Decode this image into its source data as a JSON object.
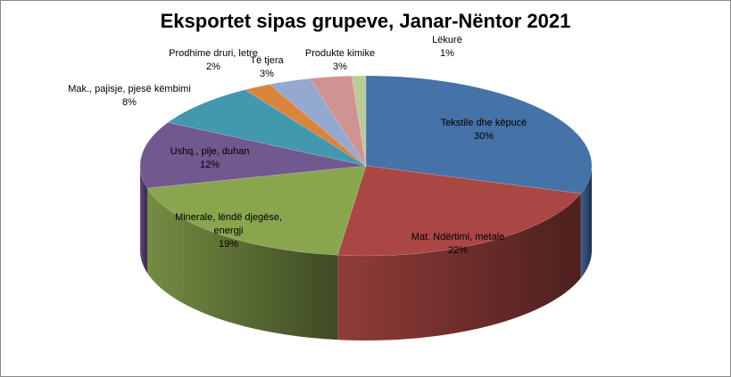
{
  "chart_data": {
    "type": "pie",
    "title": "Eksportet sipas grupeve, Janar-Nëntor 2021",
    "slices": [
      {
        "label": "Tekstile dhe këpucë",
        "value": 30,
        "value_label": "30%",
        "color": "#4572A7"
      },
      {
        "label": "Mat. Ndërtimi, metale",
        "value": 22,
        "value_label": "22%",
        "color": "#AA4643"
      },
      {
        "label": "Minerale, lëndë djegëse, energji",
        "value": 19,
        "value_label": "19%",
        "color": "#89A54E"
      },
      {
        "label": "Ushq., pije, duhan",
        "value": 12,
        "value_label": "12%",
        "color": "#71588F"
      },
      {
        "label": "Mak., pajisje, pjesë këmbimi",
        "value": 8,
        "value_label": "8%",
        "color": "#4198AF"
      },
      {
        "label": "Prodhime druri, letre",
        "value": 2,
        "value_label": "2%",
        "color": "#DB843D"
      },
      {
        "label": "Të tjera",
        "value": 3,
        "value_label": "3%",
        "color": "#93A9CF"
      },
      {
        "label": "Produkte kimike",
        "value": 3,
        "value_label": "3%",
        "color": "#D19392"
      },
      {
        "label": "Lëkurë",
        "value": 1,
        "value_label": "1%",
        "color": "#B9CD96"
      }
    ],
    "legend": "none",
    "style": "3d"
  }
}
